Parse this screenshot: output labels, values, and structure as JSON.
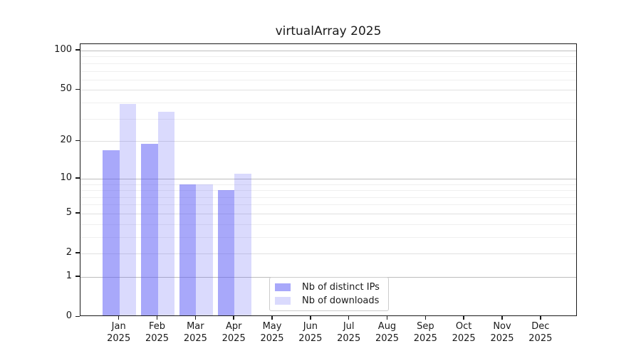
{
  "title": "virtualArray 2025",
  "chart_data": {
    "type": "bar",
    "title": "virtualArray 2025",
    "x_categories": [
      {
        "month": "Jan",
        "year": "2025"
      },
      {
        "month": "Feb",
        "year": "2025"
      },
      {
        "month": "Mar",
        "year": "2025"
      },
      {
        "month": "Apr",
        "year": "2025"
      },
      {
        "month": "May",
        "year": "2025"
      },
      {
        "month": "Jun",
        "year": "2025"
      },
      {
        "month": "Jul",
        "year": "2025"
      },
      {
        "month": "Aug",
        "year": "2025"
      },
      {
        "month": "Sep",
        "year": "2025"
      },
      {
        "month": "Oct",
        "year": "2025"
      },
      {
        "month": "Nov",
        "year": "2025"
      },
      {
        "month": "Dec",
        "year": "2025"
      }
    ],
    "series": [
      {
        "name": "Nb of distinct IPs",
        "color": "rgba(85,85,245,0.51)",
        "values": [
          17,
          19,
          9,
          8,
          0,
          0,
          0,
          0,
          0,
          0,
          0,
          0
        ]
      },
      {
        "name": "Nb of downloads",
        "color": "rgba(85,85,245,0.22)",
        "values": [
          39,
          34,
          9,
          11,
          0,
          0,
          0,
          0,
          0,
          0,
          0,
          0
        ]
      }
    ],
    "y_axis": {
      "scale": "log1p",
      "tick_labels": [
        100,
        50,
        20,
        10,
        5,
        2,
        1,
        0
      ],
      "decade_gridlines": [
        1,
        10,
        100
      ],
      "mid_gridlines": [
        2,
        5,
        20,
        50
      ],
      "minor_gridlines": [
        3,
        4,
        6,
        7,
        8,
        9,
        30,
        40,
        60,
        70,
        80,
        90
      ],
      "range_max": 112
    },
    "legend": {
      "position": "lower center"
    },
    "colors": {
      "grid_decade": "#bdbdbd",
      "grid_mid": "#e0e0e0",
      "grid_minor": "#efefef",
      "spine": "#1a1a1a",
      "text": "#1a1a1a"
    },
    "grid": true
  }
}
